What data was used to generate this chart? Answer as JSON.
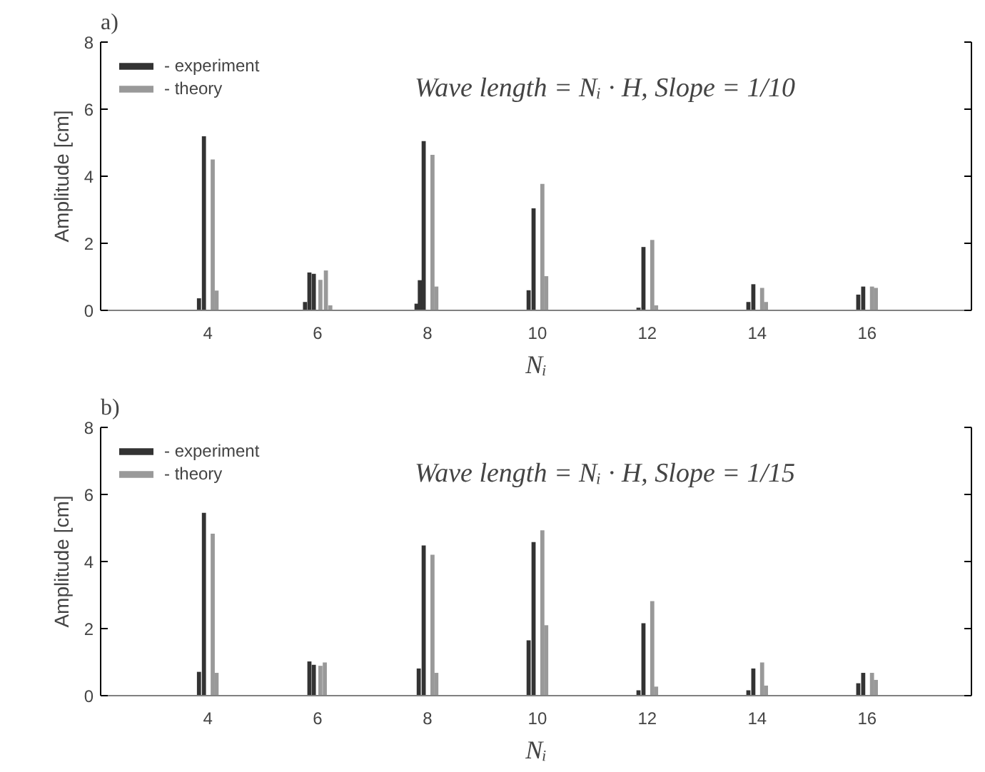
{
  "chart_data": [
    {
      "type": "bar",
      "title": "a)",
      "annotations": [
        "Wave length = Nᵢ · H,    Slope = 1/10"
      ],
      "xlabel": "Nᵢ",
      "ylabel": "Amplitude [cm]",
      "xlim": [
        2.05,
        17.9
      ],
      "xticks": [
        4,
        6,
        8,
        10,
        12,
        14,
        16
      ],
      "ylim": [
        0,
        8
      ],
      "yticks": [
        0,
        2,
        4,
        6,
        8
      ],
      "grid": false,
      "legend": "top left",
      "series": [
        {
          "name": "- experiment",
          "color": "#333333",
          "x": [
            3.84,
            3.93,
            5.77,
            5.85,
            5.93,
            7.8,
            7.86,
            7.93,
            9.84,
            9.93,
            11.84,
            11.93,
            13.84,
            13.93,
            15.84,
            15.93
          ],
          "values": [
            0.36,
            5.19,
            0.25,
            1.13,
            1.09,
            0.2,
            0.9,
            5.05,
            0.6,
            3.04,
            0.08,
            1.89,
            0.25,
            0.78,
            0.47,
            0.71
          ]
        },
        {
          "name": "- theory",
          "color": "#999999",
          "x": [
            4.09,
            4.16,
            6.05,
            6.15,
            6.23,
            8.09,
            8.16,
            10.09,
            10.16,
            12.09,
            12.16,
            14.09,
            14.16,
            16.09,
            16.16
          ],
          "values": [
            4.5,
            0.59,
            0.91,
            1.19,
            0.15,
            4.64,
            0.71,
            3.77,
            1.02,
            2.1,
            0.15,
            0.67,
            0.25,
            0.71,
            0.67
          ]
        }
      ]
    },
    {
      "type": "bar",
      "title": "b)",
      "annotations": [
        "Wave length = Nᵢ · H,    Slope = 1/15"
      ],
      "xlabel": "Nᵢ",
      "ylabel": "Amplitude [cm]",
      "xlim": [
        2.05,
        17.9
      ],
      "xticks": [
        4,
        6,
        8,
        10,
        12,
        14,
        16
      ],
      "ylim": [
        0,
        8
      ],
      "yticks": [
        0,
        2,
        4,
        6,
        8
      ],
      "grid": false,
      "legend": "top left",
      "series": [
        {
          "name": "- experiment",
          "color": "#333333",
          "x": [
            3.84,
            3.93,
            5.85,
            5.93,
            7.84,
            7.93,
            9.84,
            9.93,
            11.84,
            11.93,
            13.84,
            13.93,
            15.84,
            15.93
          ],
          "values": [
            0.71,
            5.45,
            1.02,
            0.92,
            0.81,
            4.48,
            1.65,
            4.58,
            0.16,
            2.16,
            0.16,
            0.81,
            0.37,
            0.68
          ]
        },
        {
          "name": "- theory",
          "color": "#999999",
          "x": [
            4.09,
            4.16,
            6.05,
            6.13,
            8.09,
            8.16,
            10.09,
            10.16,
            12.09,
            12.16,
            14.09,
            14.16,
            16.09,
            16.16
          ],
          "values": [
            4.83,
            0.68,
            0.89,
            0.99,
            4.2,
            0.68,
            4.93,
            2.1,
            2.82,
            0.27,
            0.99,
            0.3,
            0.68,
            0.47
          ]
        }
      ]
    }
  ]
}
